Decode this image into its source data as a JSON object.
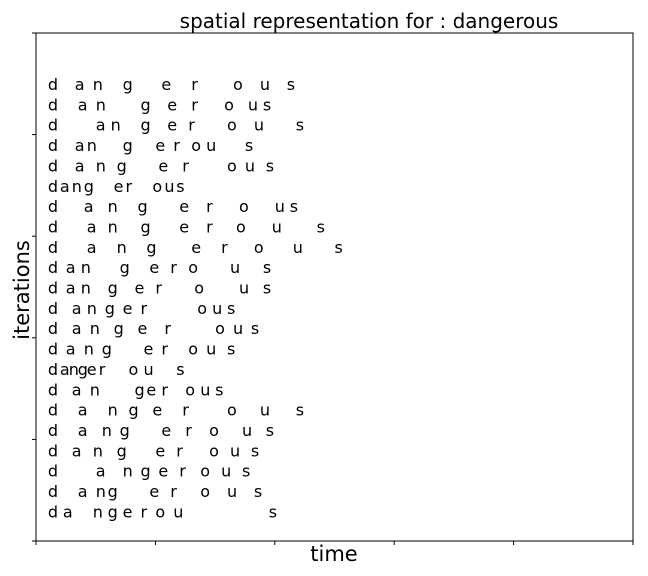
{
  "chart_data": {
    "type": "scatter",
    "title": "spatial representation for : dangerous",
    "xlabel": "time",
    "ylabel": "iterations",
    "word": "dangerous",
    "xlim": [
      0,
      100
    ],
    "ylim": [
      0,
      100
    ],
    "show_tick_labels": false,
    "grid": false,
    "rows": [
      {
        "letters": [
          "d",
          "a",
          "n",
          "g",
          "e",
          "r",
          "o",
          "u",
          "s"
        ],
        "x": [
          2.0,
          6.5,
          9.5,
          14.5,
          21.0,
          26.0,
          33.0,
          37.5,
          42.0
        ]
      },
      {
        "letters": [
          "d",
          "a",
          "n",
          "g",
          "e",
          "r",
          "o",
          "u",
          "s"
        ],
        "x": [
          2.0,
          7.0,
          10.0,
          17.5,
          22.0,
          26.0,
          31.5,
          35.5,
          38.0
        ]
      },
      {
        "letters": [
          "d",
          "a",
          "n",
          "g",
          "e",
          "r",
          "o",
          "u",
          "s"
        ],
        "x": [
          2.0,
          10.0,
          12.5,
          17.5,
          22.0,
          25.5,
          32.0,
          36.5,
          43.5
        ]
      },
      {
        "letters": [
          "d",
          "a",
          "n",
          "g",
          "e",
          "r",
          "o",
          "u",
          "s"
        ],
        "x": [
          2.0,
          6.5,
          8.5,
          14.5,
          20.0,
          23.0,
          26.0,
          28.5,
          35.0
        ]
      },
      {
        "letters": [
          "d",
          "a",
          "n",
          "g",
          "e",
          "r",
          "o",
          "u",
          "s"
        ],
        "x": [
          2.0,
          6.5,
          10.0,
          13.5,
          20.5,
          24.5,
          32.0,
          35.0,
          38.5
        ]
      },
      {
        "letters": [
          "d",
          "a",
          "n",
          "g",
          "e",
          "r",
          "o",
          "u",
          "s"
        ],
        "x": [
          2.0,
          4.0,
          6.0,
          8.0,
          13.0,
          15.0,
          19.5,
          21.5,
          23.5
        ]
      },
      {
        "letters": [
          "d",
          "a",
          "n",
          "g",
          "e",
          "r",
          "o",
          "u",
          "s"
        ],
        "x": [
          2.0,
          8.0,
          12.0,
          17.0,
          24.0,
          28.5,
          34.0,
          40.0,
          42.5
        ]
      },
      {
        "letters": [
          "d",
          "a",
          "n",
          "g",
          "e",
          "r",
          "o",
          "u",
          "s"
        ],
        "x": [
          2.0,
          8.5,
          12.0,
          17.5,
          24.0,
          28.5,
          33.5,
          39.5,
          47.0
        ]
      },
      {
        "letters": [
          "d",
          "a",
          "n",
          "g",
          "e",
          "r",
          "o",
          "u",
          "s"
        ],
        "x": [
          2.0,
          8.5,
          13.5,
          18.5,
          26.0,
          31.0,
          36.5,
          43.0,
          50.0
        ]
      },
      {
        "letters": [
          "d",
          "a",
          "n",
          "g",
          "e",
          "r",
          "o",
          "u",
          "s"
        ],
        "x": [
          2.0,
          5.0,
          7.5,
          14.0,
          19.0,
          22.5,
          25.5,
          32.5,
          38.0
        ]
      },
      {
        "letters": [
          "d",
          "a",
          "n",
          "g",
          "e",
          "r",
          "o",
          "u",
          "s"
        ],
        "x": [
          2.0,
          5.0,
          7.5,
          12.0,
          16.5,
          20.0,
          26.5,
          34.0,
          38.0
        ]
      },
      {
        "letters": [
          "d",
          "a",
          "n",
          "g",
          "e",
          "r",
          "o",
          "u",
          "s"
        ],
        "x": [
          2.0,
          6.0,
          8.5,
          11.5,
          14.5,
          17.5,
          27.0,
          29.5,
          32.0
        ]
      },
      {
        "letters": [
          "d",
          "a",
          "n",
          "g",
          "e",
          "r",
          "o",
          "u",
          "s"
        ],
        "x": [
          2.0,
          6.0,
          9.0,
          13.0,
          17.0,
          21.5,
          30.0,
          33.0,
          36.0
        ]
      },
      {
        "letters": [
          "d",
          "a",
          "n",
          "g",
          "e",
          "r",
          "o",
          "u",
          "s"
        ],
        "x": [
          2.0,
          5.0,
          8.0,
          11.0,
          18.0,
          21.0,
          25.5,
          28.5,
          32.0
        ]
      },
      {
        "letters": [
          "d",
          "a",
          "n",
          "g",
          "e",
          "r",
          "o",
          "u",
          "s"
        ],
        "x": [
          2.0,
          4.0,
          5.5,
          7.0,
          8.5,
          10.5,
          15.5,
          18.0,
          23.5
        ]
      },
      {
        "letters": [
          "d",
          "a",
          "n",
          "g",
          "e",
          "r",
          "o",
          "u",
          "s"
        ],
        "x": [
          2.0,
          6.0,
          9.0,
          16.5,
          18.5,
          21.0,
          25.0,
          27.5,
          30.0
        ]
      },
      {
        "letters": [
          "d",
          "a",
          "n",
          "g",
          "e",
          "r",
          "o",
          "u",
          "s"
        ],
        "x": [
          2.0,
          7.0,
          12.0,
          15.5,
          19.5,
          24.5,
          32.0,
          37.5,
          43.5
        ]
      },
      {
        "letters": [
          "d",
          "a",
          "n",
          "g",
          "e",
          "r",
          "o",
          "u",
          "s"
        ],
        "x": [
          2.0,
          7.0,
          11.0,
          14.0,
          21.0,
          25.0,
          29.0,
          34.5,
          38.5
        ]
      },
      {
        "letters": [
          "d",
          "a",
          "n",
          "g",
          "e",
          "r",
          "o",
          "u",
          "s"
        ],
        "x": [
          2.0,
          6.0,
          9.5,
          13.5,
          20.0,
          23.5,
          29.0,
          32.5,
          36.0
        ]
      },
      {
        "letters": [
          "d",
          "a",
          "n",
          "g",
          "e",
          "r",
          "o",
          "u",
          "s"
        ],
        "x": [
          2.0,
          10.0,
          14.5,
          17.5,
          20.5,
          24.0,
          27.5,
          31.0,
          34.5
        ]
      },
      {
        "letters": [
          "d",
          "a",
          "n",
          "g",
          "e",
          "r",
          "o",
          "u",
          "s"
        ],
        "x": [
          2.0,
          7.0,
          10.0,
          12.0,
          19.0,
          22.5,
          27.5,
          32.0,
          36.5
        ]
      },
      {
        "letters": [
          "d",
          "a",
          "n",
          "g",
          "e",
          "r",
          "o",
          "u",
          "s"
        ],
        "x": [
          2.0,
          4.5,
          9.5,
          12.0,
          14.5,
          17.5,
          20.0,
          23.0,
          39.0
        ]
      }
    ]
  }
}
